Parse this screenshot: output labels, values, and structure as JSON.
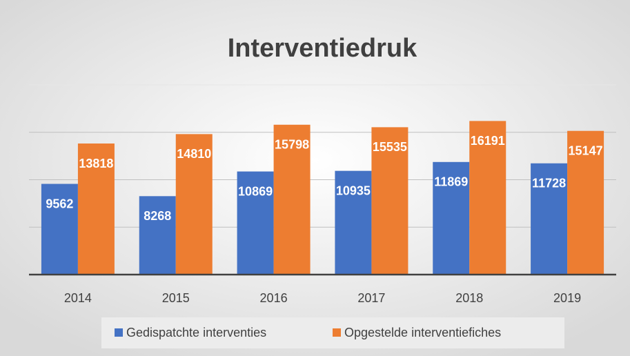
{
  "chart_data": {
    "type": "bar",
    "title": "Interventiedruk",
    "categories": [
      "2014",
      "2015",
      "2016",
      "2017",
      "2018",
      "2019"
    ],
    "series": [
      {
        "name": "Gedispatchte interventies",
        "color": "#4472c4",
        "values": [
          9562,
          8268,
          10869,
          10935,
          11869,
          11728
        ]
      },
      {
        "name": "Opgestelde interventiefiches",
        "color": "#ed7d31",
        "values": [
          13818,
          14810,
          15798,
          15535,
          16191,
          15147
        ]
      }
    ],
    "ylim": [
      0,
      20000
    ],
    "yticks": [
      0,
      5000,
      10000,
      15000,
      20000
    ],
    "grid": true,
    "legend": "bottom"
  }
}
